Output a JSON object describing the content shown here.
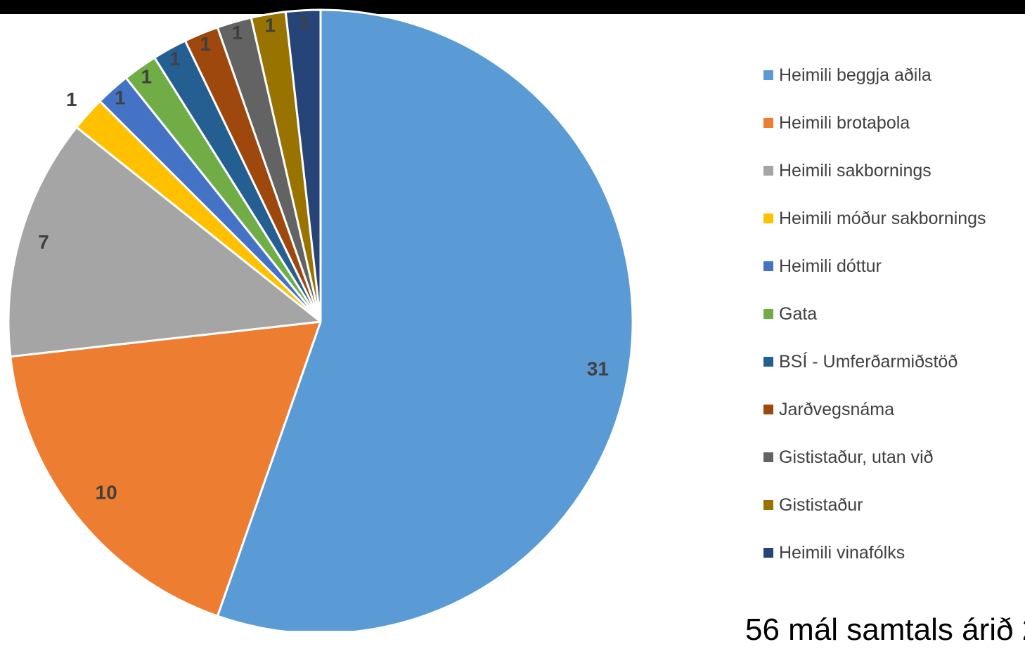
{
  "chart_data": {
    "type": "pie",
    "categories": [
      "Heimili beggja aðila",
      "Heimili brotaþola",
      "Heimili sakbornings",
      "Heimili móður sakbornings",
      "Heimili dóttur",
      "Gata",
      "BSÍ - Umferðarmiðstöð",
      "Jarðvegsnáma",
      "Gististaður, utan við",
      "Gististaður",
      "Heimili vinafólks"
    ],
    "values": [
      31,
      10,
      7,
      1,
      1,
      1,
      1,
      1,
      1,
      1,
      1
    ],
    "data_labels": [
      "31",
      "10",
      "7",
      "1",
      "1",
      "1",
      "1",
      "1",
      "1",
      "1",
      "1"
    ],
    "colors": [
      "#5B9BD5",
      "#ED7D31",
      "#A5A5A5",
      "#FFC000",
      "#4472C4",
      "#70AD47",
      "#255E91",
      "#9E480E",
      "#636363",
      "#997300",
      "#264478"
    ],
    "legend_position": "right",
    "start_angle": "12 o'clock, clockwise"
  },
  "caption": "56 mál samtals árið 2"
}
